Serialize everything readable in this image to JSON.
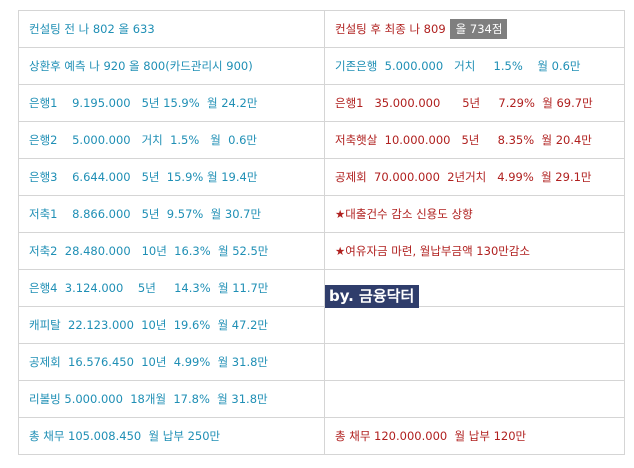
{
  "rows": [
    {
      "left": "컨설팅 전 나 802 올 633",
      "right": "컨설팅 후 최종 나 809",
      "right_highlight": "올 734점"
    },
    {
      "left": "상환후 예측 나 920 올 800(카드관리시 900)",
      "right": "기존은행  5.000.000   거치     1.5%    월 0.6만"
    },
    {
      "left": "은행1    9.195.000   5년 15.9%  월 24.2만",
      "right": "은행1   35.000.000      5년     7.29%  월 69.7만"
    },
    {
      "left": "은행2    5.000.000   거치  1.5%   월  0.6만",
      "right": "저축햇살  10.000.000   5년     8.35%  월 20.4만"
    },
    {
      "left": "은행3    6.644.000   5년  15.9% 월 19.4만",
      "right": "공제회  70.000.000  2년거치   4.99%  월 29.1만"
    },
    {
      "left": "저축1    8.866.000   5년  9.57%  월 30.7만",
      "right": "★대출건수 감소 신용도 상향"
    },
    {
      "left": "저축2  28.480.000   10년  16.3%  월 52.5만",
      "right": "★여유자금 마련, 월납부금액 130만감소"
    },
    {
      "left": "은행4  3.124.000    5년     14.3%  월 11.7만",
      "right": ""
    },
    {
      "left": "캐피탈  22.123.000  10년  19.6%  월 47.2만",
      "right": ""
    },
    {
      "left": "공제회  16.576.450  10년  4.99%  월 31.8만",
      "right": ""
    },
    {
      "left": "리볼빙 5.000.000  18개월  17.8%  월 31.8만",
      "right": ""
    },
    {
      "left": "총 채무 105.008.450  월 납부 250만",
      "right": "총 채무 120.000.000  월 납부 120만"
    }
  ],
  "watermark": "by. 금융닥터"
}
